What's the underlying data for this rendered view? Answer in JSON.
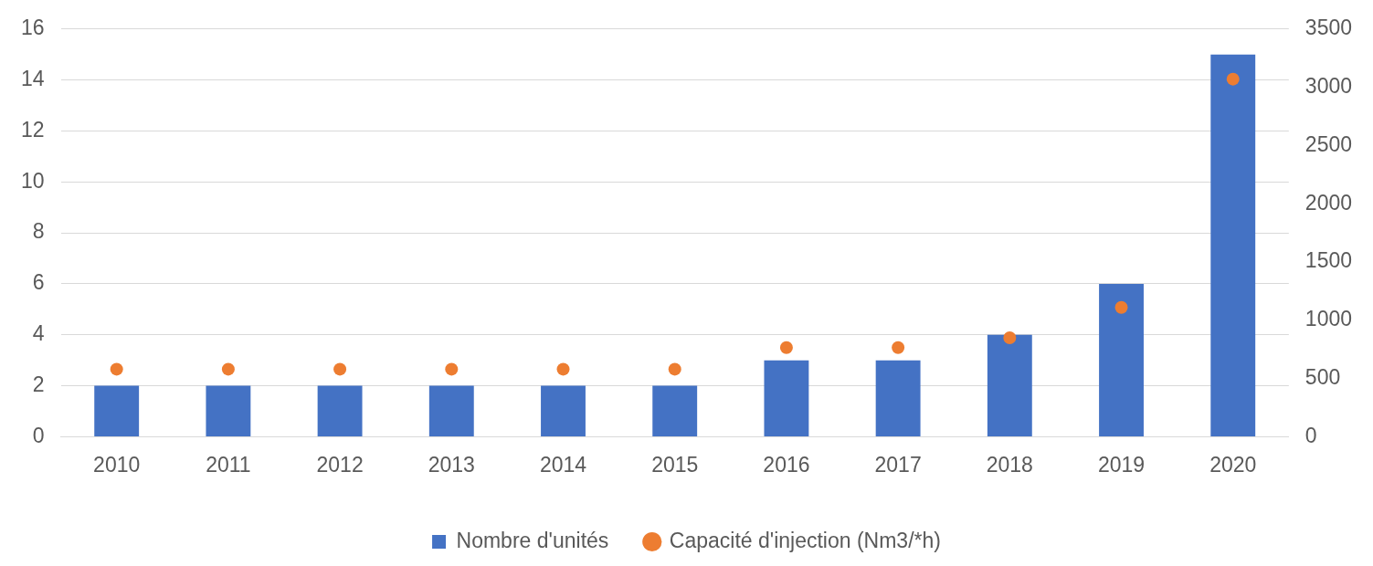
{
  "chart_data": {
    "type": "bar",
    "categories": [
      "2010",
      "2011",
      "2012",
      "2013",
      "2014",
      "2015",
      "2016",
      "2017",
      "2018",
      "2019",
      "2020"
    ],
    "series": [
      {
        "name": "Nombre d'unités",
        "color": "#4472c4",
        "values": [
          2,
          2,
          2,
          2,
          2,
          2,
          3,
          3,
          4,
          6,
          15
        ]
      },
      {
        "name": "Capacité d'injection (Nm3/*h)",
        "type": "scatter",
        "axis": "y2",
        "color": "#ed7d31",
        "marker": "circle",
        "values": [
          580,
          580,
          580,
          580,
          580,
          580,
          765,
          765,
          850,
          1110,
          3070
        ]
      }
    ],
    "ylim": [
      0,
      16
    ],
    "yticks": [
      0,
      2,
      4,
      6,
      8,
      10,
      12,
      14,
      16
    ],
    "y2lim": [
      0,
      3500
    ],
    "y2ticks": [
      0,
      500,
      1000,
      1500,
      2000,
      2500,
      3000,
      3500
    ],
    "grid": "y",
    "legend": "bottom"
  }
}
